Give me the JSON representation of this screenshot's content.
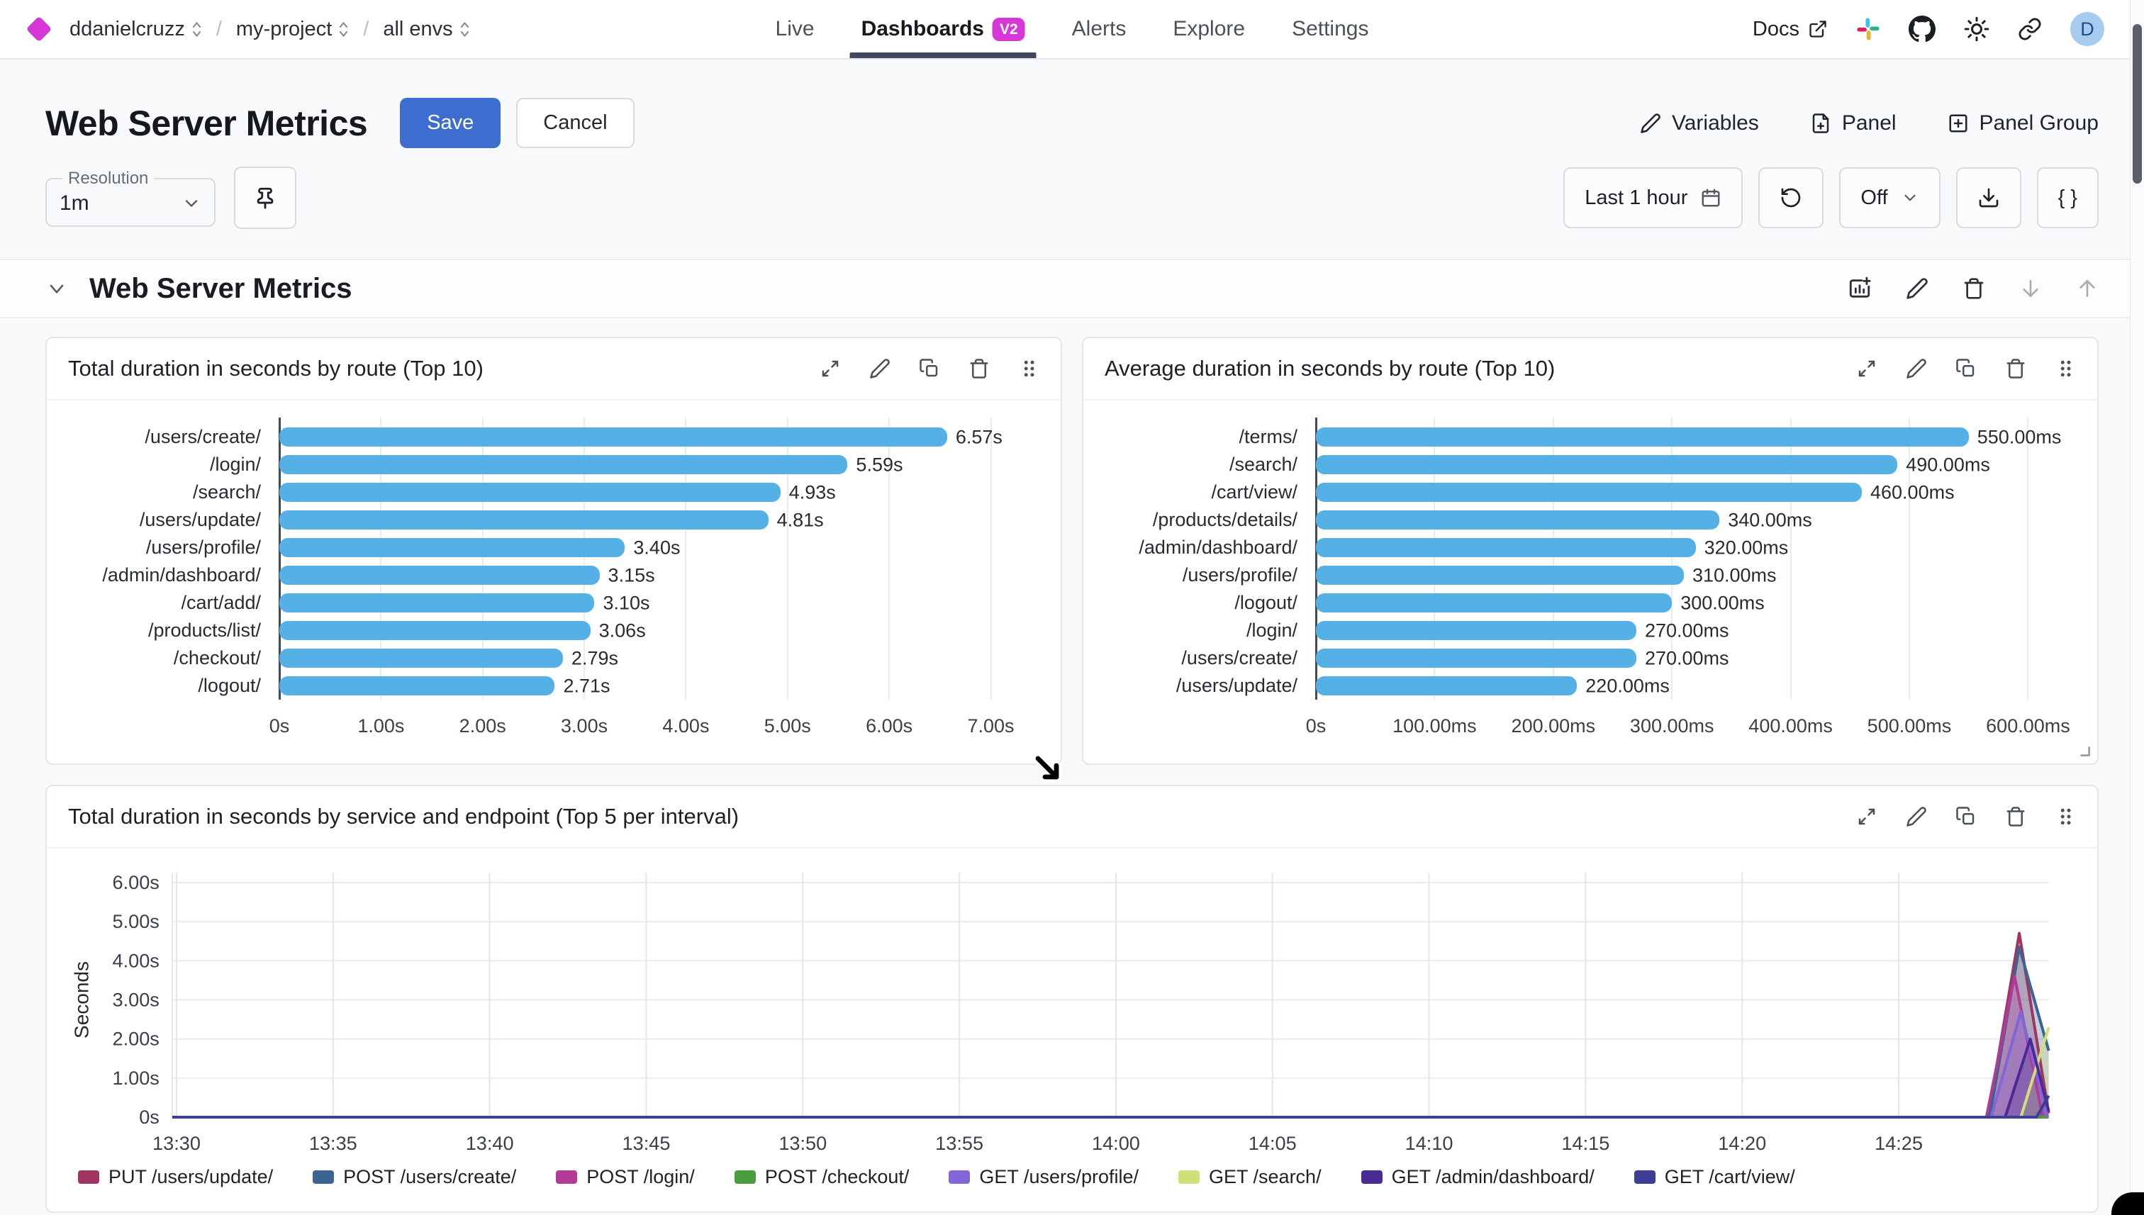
{
  "nav": {
    "breadcrumbs": [
      {
        "label": "ddanielcruzz"
      },
      {
        "label": "my-project"
      },
      {
        "label": "all envs"
      }
    ],
    "separator": "/",
    "tabs": [
      {
        "label": "Live",
        "active": false
      },
      {
        "label": "Dashboards",
        "active": true,
        "badge": "V2"
      },
      {
        "label": "Alerts",
        "active": false
      },
      {
        "label": "Explore",
        "active": false
      },
      {
        "label": "Settings",
        "active": false
      }
    ],
    "docs_label": "Docs",
    "avatar_initial": "D"
  },
  "header": {
    "title": "Web Server Metrics",
    "save_label": "Save",
    "cancel_label": "Cancel",
    "variables_label": "Variables",
    "panel_label": "Panel",
    "panel_group_label": "Panel Group"
  },
  "toolbar": {
    "resolution_label": "Resolution",
    "resolution_value": "1m",
    "time_range_label": "Last 1 hour",
    "refresh_interval_label": "Off",
    "braces_label": "{ }"
  },
  "section": {
    "title": "Web Server Metrics"
  },
  "icons": {
    "logo": "diamond-icon",
    "docs": "external-link-icon",
    "community": "slack-icon",
    "source": "github-icon",
    "theme": "sun-icon",
    "share": "link-icon",
    "panel_actions": [
      "expand-icon",
      "edit-pencil-icon",
      "duplicate-icon",
      "trash-icon",
      "drag-handle-icon"
    ],
    "section_actions": [
      "add-panel-icon",
      "edit-pencil-icon",
      "trash-icon",
      "arrow-down-icon",
      "arrow-up-icon"
    ]
  },
  "colors": {
    "accent_magenta": "#d837d8",
    "save_blue": "#3d6ecf",
    "bar_blue": "#55b1e5",
    "active_tab_underline": "#3e4a5c",
    "avatar_bg": "#a6cbf1"
  },
  "chart_data": [
    {
      "type": "bar",
      "orientation": "horizontal",
      "title": "Total duration in seconds by route (Top 10)",
      "categories": [
        "/users/create/",
        "/login/",
        "/search/",
        "/users/update/",
        "/users/profile/",
        "/admin/dashboard/",
        "/cart/add/",
        "/products/list/",
        "/checkout/",
        "/logout/"
      ],
      "values": [
        6.57,
        5.59,
        4.93,
        4.81,
        3.4,
        3.15,
        3.1,
        3.06,
        2.79,
        2.71
      ],
      "value_labels": [
        "6.57s",
        "5.59s",
        "4.93s",
        "4.81s",
        "3.40s",
        "3.15s",
        "3.10s",
        "3.06s",
        "2.79s",
        "2.71s"
      ],
      "x_ticks": [
        "0s",
        "1.00s",
        "2.00s",
        "3.00s",
        "4.00s",
        "5.00s",
        "6.00s",
        "7.00s"
      ],
      "x_tick_values": [
        0,
        1,
        2,
        3,
        4,
        5,
        6,
        7
      ],
      "x_domain_max": 7.38,
      "unit": "s"
    },
    {
      "type": "bar",
      "orientation": "horizontal",
      "title": "Average duration in seconds by route (Top 10)",
      "categories": [
        "/terms/",
        "/search/",
        "/cart/view/",
        "/products/details/",
        "/admin/dashboard/",
        "/users/profile/",
        "/logout/",
        "/login/",
        "/users/create/",
        "/users/update/"
      ],
      "values": [
        550,
        490,
        460,
        340,
        320,
        310,
        300,
        270,
        270,
        220
      ],
      "value_labels": [
        "550.00ms",
        "490.00ms",
        "460.00ms",
        "340.00ms",
        "320.00ms",
        "310.00ms",
        "300.00ms",
        "270.00ms",
        "270.00ms",
        "220.00ms"
      ],
      "x_ticks": [
        "0s",
        "100.00ms",
        "200.00ms",
        "300.00ms",
        "400.00ms",
        "500.00ms",
        "600.00ms"
      ],
      "x_tick_values": [
        0,
        100,
        200,
        300,
        400,
        500,
        600
      ],
      "x_domain_max": 632,
      "unit": "ms"
    },
    {
      "type": "area",
      "title": "Total duration in seconds by service and endpoint (Top 5 per interval)",
      "ylabel": "Seconds",
      "y_ticks": [
        "0s",
        "1.00s",
        "2.00s",
        "3.00s",
        "4.00s",
        "5.00s",
        "6.00s"
      ],
      "y_tick_values": [
        0,
        1,
        2,
        3,
        4,
        5,
        6
      ],
      "y_max": 6,
      "x_ticks": [
        "13:30",
        "13:35",
        "13:40",
        "13:45",
        "13:50",
        "13:55",
        "14:00",
        "14:05",
        "14:10",
        "14:15",
        "14:20",
        "14:25"
      ],
      "x_tick_step_minutes": 5,
      "x_end_minutes": 59.8,
      "series": [
        {
          "name": "PUT /users/update/",
          "color": "#9e3563",
          "points": [
            [
              0,
              0
            ],
            [
              57.85,
              0
            ],
            [
              58.85,
              4.7
            ],
            [
              59.8,
              0.1
            ]
          ]
        },
        {
          "name": "POST /users/create/",
          "color": "#3d6390",
          "points": [
            [
              0,
              0
            ],
            [
              57.9,
              0
            ],
            [
              58.85,
              4.35
            ],
            [
              59.8,
              1.7
            ]
          ]
        },
        {
          "name": "POST /login/",
          "color": "#b23a97",
          "points": [
            [
              0,
              0
            ],
            [
              57.8,
              0
            ],
            [
              58.7,
              3.6
            ],
            [
              59.6,
              0
            ]
          ]
        },
        {
          "name": "POST /checkout/",
          "color": "#4a9c3f",
          "points": [
            [
              0,
              0
            ],
            [
              59.8,
              0
            ]
          ]
        },
        {
          "name": "GET /users/profile/",
          "color": "#8266d9",
          "points": [
            [
              0,
              0
            ],
            [
              57.95,
              0
            ],
            [
              58.9,
              2.7
            ],
            [
              59.75,
              0
            ]
          ]
        },
        {
          "name": "GET /search/",
          "color": "#cfdf79",
          "points": [
            [
              0,
              0
            ],
            [
              58.9,
              0
            ],
            [
              59.8,
              2.3
            ]
          ]
        },
        {
          "name": "GET /admin/dashboard/",
          "color": "#4b2a94",
          "points": [
            [
              0,
              0
            ],
            [
              58.4,
              0
            ],
            [
              59.2,
              2.0
            ],
            [
              59.8,
              0.15
            ]
          ]
        },
        {
          "name": "GET /cart/view/",
          "color": "#3d3f95",
          "points": [
            [
              0,
              0
            ],
            [
              59.4,
              0
            ],
            [
              59.8,
              0.55
            ]
          ]
        }
      ]
    }
  ]
}
